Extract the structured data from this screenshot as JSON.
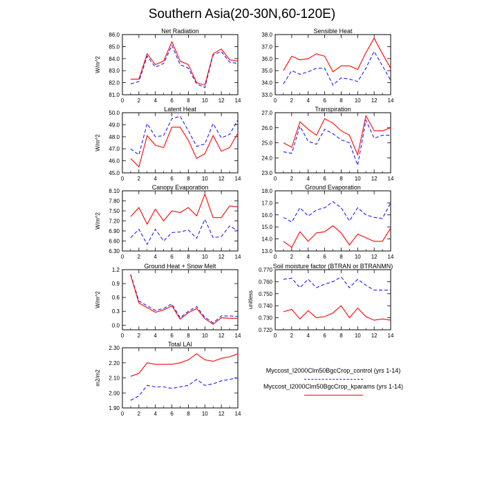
{
  "title": "Southern Asia(20-30N,60-120E)",
  "colors": {
    "control": "#1a1aff",
    "kparams": "#ff0000",
    "axis": "#000000"
  },
  "legend": {
    "entries": [
      {
        "label": "Myccost_I2000Clm50BgcCrop_control (yrs 1-14)",
        "color": "#1a1aff",
        "dash": true
      },
      {
        "label": "Myccost_I2000Clm50BgcCrop_kparams (yrs 1-14)",
        "color": "#ff0000",
        "dash": false
      }
    ]
  },
  "chart_data": [
    {
      "type": "line",
      "title": "Net Radiation",
      "ylabel": "W/m^2",
      "ylim": [
        81.0,
        86.0
      ],
      "yticks": [
        "81.0",
        "82.0",
        "83.0",
        "84.0",
        "85.0",
        "86.0"
      ],
      "xlim": [
        0,
        14
      ],
      "xticks": [
        0,
        2,
        4,
        6,
        8,
        10,
        12,
        14
      ],
      "x": [
        1,
        2,
        3,
        4,
        5,
        6,
        7,
        8,
        9,
        10,
        11,
        12,
        13,
        14
      ],
      "series": [
        {
          "name": "Myccost_I2000Clm50BgcCrop_control (yrs 1-14)",
          "values": [
            81.9,
            82.1,
            84.2,
            83.3,
            83.6,
            85.1,
            83.5,
            83.2,
            81.9,
            81.6,
            84.3,
            84.6,
            83.7,
            83.6
          ]
        },
        {
          "name": "Myccost_I2000Clm50BgcCrop_kparams (yrs 1-14)",
          "values": [
            82.3,
            82.3,
            84.4,
            83.5,
            83.8,
            85.4,
            83.8,
            83.5,
            82.0,
            81.8,
            84.4,
            84.8,
            83.9,
            83.8
          ]
        }
      ]
    },
    {
      "type": "line",
      "title": "Sensible Heat",
      "ylabel": "",
      "ylim": [
        33.0,
        38.0
      ],
      "yticks": [
        "33.0",
        "34.0",
        "35.0",
        "36.0",
        "37.0",
        "38.0"
      ],
      "xlim": [
        0,
        14
      ],
      "xticks": [
        0,
        2,
        4,
        6,
        8,
        10,
        12,
        14
      ],
      "x": [
        1,
        2,
        3,
        4,
        5,
        6,
        7,
        8,
        9,
        10,
        11,
        12,
        13,
        14
      ],
      "series": [
        {
          "name": "Myccost_I2000Clm50BgcCrop_control (yrs 1-14)",
          "values": [
            33.9,
            35.0,
            34.7,
            34.9,
            35.2,
            35.2,
            33.8,
            34.4,
            34.3,
            34.1,
            35.2,
            36.6,
            35.4,
            34.2
          ]
        },
        {
          "name": "Myccost_I2000Clm50BgcCrop_kparams (yrs 1-14)",
          "values": [
            35.0,
            36.2,
            35.9,
            36.0,
            36.4,
            36.2,
            34.9,
            35.4,
            35.4,
            35.1,
            36.5,
            37.7,
            36.4,
            35.2
          ]
        }
      ]
    },
    {
      "type": "line",
      "title": "Latent Heat",
      "ylabel": "W/m^2",
      "ylim": [
        45.0,
        50.0
      ],
      "yticks": [
        "45.0",
        "46.0",
        "47.0",
        "48.0",
        "49.0",
        "50.0"
      ],
      "xlim": [
        0,
        14
      ],
      "xticks": [
        0,
        2,
        4,
        6,
        8,
        10,
        12,
        14
      ],
      "x": [
        1,
        2,
        3,
        4,
        5,
        6,
        7,
        8,
        9,
        10,
        11,
        12,
        13,
        14
      ],
      "series": [
        {
          "name": "Myccost_I2000Clm50BgcCrop_control (yrs 1-14)",
          "values": [
            47.0,
            46.5,
            49.1,
            48.0,
            48.1,
            49.5,
            49.7,
            48.5,
            47.2,
            47.4,
            49.1,
            47.9,
            48.2,
            49.4
          ]
        },
        {
          "name": "Myccost_I2000Clm50BgcCrop_kparams (yrs 1-14)",
          "values": [
            46.2,
            45.5,
            48.1,
            47.3,
            47.1,
            48.8,
            48.8,
            47.7,
            46.2,
            46.6,
            48.1,
            46.8,
            47.1,
            48.3
          ]
        }
      ]
    },
    {
      "type": "line",
      "title": "Transpiration",
      "ylabel": "",
      "ylim": [
        23.0,
        27.0
      ],
      "yticks": [
        "23.0",
        "24.0",
        "25.0",
        "26.0",
        "27.0"
      ],
      "xlim": [
        0,
        14
      ],
      "xticks": [
        0,
        2,
        4,
        6,
        8,
        10,
        12,
        14
      ],
      "x": [
        1,
        2,
        3,
        4,
        5,
        6,
        7,
        8,
        9,
        10,
        11,
        12,
        13,
        14
      ],
      "series": [
        {
          "name": "Myccost_I2000Clm50BgcCrop_control (yrs 1-14)",
          "values": [
            24.4,
            24.3,
            26.1,
            25.1,
            24.9,
            25.9,
            25.6,
            25.2,
            25.0,
            23.5,
            26.5,
            25.3,
            25.5,
            25.5
          ]
        },
        {
          "name": "Myccost_I2000Clm50BgcCrop_kparams (yrs 1-14)",
          "values": [
            25.0,
            24.7,
            26.4,
            25.9,
            25.5,
            26.6,
            26.3,
            25.8,
            25.5,
            24.2,
            26.8,
            25.8,
            25.8,
            26.0
          ]
        }
      ]
    },
    {
      "type": "line",
      "title": "Canopy Evaporation",
      "ylabel": "W/m^2",
      "ylim": [
        6.3,
        8.1
      ],
      "yticks": [
        "6.30",
        "6.60",
        "6.90",
        "7.20",
        "7.50",
        "7.80",
        "8.10"
      ],
      "xlim": [
        0,
        14
      ],
      "xticks": [
        0,
        2,
        4,
        6,
        8,
        10,
        12,
        14
      ],
      "x": [
        1,
        2,
        3,
        4,
        5,
        6,
        7,
        8,
        9,
        10,
        11,
        12,
        13,
        14
      ],
      "series": [
        {
          "name": "Myccost_I2000Clm50BgcCrop_control (yrs 1-14)",
          "values": [
            6.7,
            6.95,
            6.5,
            6.95,
            6.6,
            6.85,
            6.87,
            6.93,
            6.68,
            7.25,
            6.7,
            6.73,
            7.05,
            6.9
          ]
        },
        {
          "name": "Myccost_I2000Clm50BgcCrop_kparams (yrs 1-14)",
          "values": [
            7.33,
            7.6,
            7.1,
            7.55,
            7.2,
            7.5,
            7.45,
            7.6,
            7.35,
            8.0,
            7.3,
            7.3,
            7.65,
            7.62
          ]
        }
      ]
    },
    {
      "type": "line",
      "title": "Ground Evaporation",
      "ylabel": "",
      "ylim": [
        13.0,
        18.0
      ],
      "yticks": [
        "13.0",
        "14.0",
        "15.0",
        "16.0",
        "17.0",
        "18.0"
      ],
      "xlim": [
        0,
        14
      ],
      "xticks": [
        0,
        2,
        4,
        6,
        8,
        10,
        12,
        14
      ],
      "x": [
        1,
        2,
        3,
        4,
        5,
        6,
        7,
        8,
        9,
        10,
        11,
        12,
        13,
        14
      ],
      "series": [
        {
          "name": "Myccost_I2000Clm50BgcCrop_control (yrs 1-14)",
          "values": [
            15.8,
            15.4,
            16.6,
            15.9,
            16.4,
            16.6,
            17.1,
            16.6,
            15.5,
            16.6,
            16.0,
            15.8,
            15.7,
            17.0
          ]
        },
        {
          "name": "Myccost_I2000Clm50BgcCrop_kparams (yrs 1-14)",
          "values": [
            13.8,
            13.3,
            14.6,
            13.8,
            14.5,
            14.6,
            15.1,
            14.5,
            13.5,
            14.4,
            14.1,
            13.8,
            13.8,
            14.9
          ]
        }
      ]
    },
    {
      "type": "line",
      "title": "Ground Heat + Snow Melt",
      "ylabel": "W/m^2",
      "ylim": [
        -0.1,
        1.2
      ],
      "yticks": [
        "0.0",
        "0.3",
        "0.6",
        "0.9",
        "1.2"
      ],
      "ytick_values": [
        0.0,
        0.3,
        0.6,
        0.9,
        1.2
      ],
      "xlim": [
        0,
        14
      ],
      "xticks": [
        0,
        2,
        4,
        6,
        8,
        10,
        12,
        14
      ],
      "x": [
        1,
        2,
        3,
        4,
        5,
        6,
        7,
        8,
        9,
        10,
        11,
        12,
        13,
        14
      ],
      "series": [
        {
          "name": "Myccost_I2000Clm50BgcCrop_control (yrs 1-14)",
          "values": [
            1.1,
            0.52,
            0.42,
            0.32,
            0.36,
            0.46,
            0.16,
            0.3,
            0.4,
            0.17,
            0.05,
            0.2,
            0.2,
            0.19
          ]
        },
        {
          "name": "Myccost_I2000Clm50BgcCrop_kparams (yrs 1-14)",
          "values": [
            1.08,
            0.48,
            0.38,
            0.28,
            0.33,
            0.42,
            0.13,
            0.27,
            0.36,
            0.14,
            0.02,
            0.16,
            0.15,
            0.15
          ]
        }
      ]
    },
    {
      "type": "line",
      "title": "Soil moisture factor (BTRAN or BTRANMN)",
      "ylabel": "unitless",
      "ylim": [
        0.72,
        0.77
      ],
      "yticks": [
        "0.720",
        "0.730",
        "0.740",
        "0.750",
        "0.760",
        "0.770"
      ],
      "xlim": [
        0,
        14
      ],
      "xticks": [
        0,
        2,
        4,
        6,
        8,
        10,
        12,
        14
      ],
      "x": [
        1,
        2,
        3,
        4,
        5,
        6,
        7,
        8,
        9,
        10,
        11,
        12,
        13,
        14
      ],
      "series": [
        {
          "name": "Myccost_I2000Clm50BgcCrop_control (yrs 1-14)",
          "values": [
            0.762,
            0.763,
            0.755,
            0.762,
            0.755,
            0.758,
            0.76,
            0.764,
            0.755,
            0.762,
            0.757,
            0.753,
            0.753,
            0.753
          ]
        },
        {
          "name": "Myccost_I2000Clm50BgcCrop_kparams (yrs 1-14)",
          "values": [
            0.735,
            0.737,
            0.729,
            0.736,
            0.73,
            0.731,
            0.734,
            0.74,
            0.73,
            0.738,
            0.731,
            0.728,
            0.729,
            0.728
          ]
        }
      ]
    },
    {
      "type": "line",
      "title": "Total LAI",
      "ylabel": "m2/m2",
      "ylim": [
        1.9,
        2.3
      ],
      "yticks": [
        "1.90",
        "2.00",
        "2.10",
        "2.20",
        "2.30"
      ],
      "xlim": [
        0,
        14
      ],
      "xticks": [
        0,
        2,
        4,
        6,
        8,
        10,
        12,
        14
      ],
      "x": [
        1,
        2,
        3,
        4,
        5,
        6,
        7,
        8,
        9,
        10,
        11,
        12,
        13,
        14
      ],
      "series": [
        {
          "name": "Myccost_I2000Clm50BgcCrop_control (yrs 1-14)",
          "values": [
            1.95,
            1.98,
            2.05,
            2.04,
            2.04,
            2.03,
            2.04,
            2.05,
            2.09,
            2.05,
            2.06,
            2.08,
            2.09,
            2.1
          ]
        },
        {
          "name": "Myccost_I2000Clm50BgcCrop_kparams (yrs 1-14)",
          "values": [
            2.11,
            2.13,
            2.2,
            2.19,
            2.19,
            2.19,
            2.2,
            2.22,
            2.26,
            2.22,
            2.21,
            2.23,
            2.24,
            2.26
          ]
        }
      ]
    }
  ]
}
